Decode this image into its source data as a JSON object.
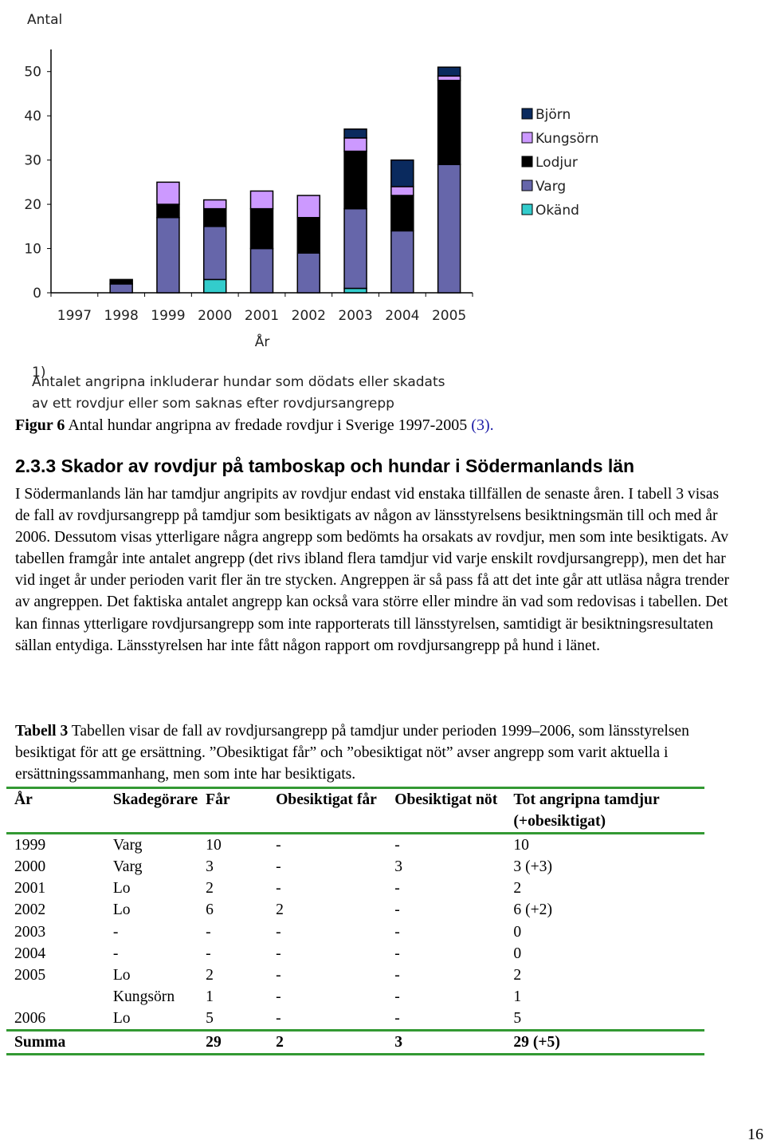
{
  "chart_data": {
    "type": "bar",
    "stacked": true,
    "y_label": "Antal",
    "x_label": "År",
    "categories": [
      "1997",
      "1998",
      "1999",
      "2000",
      "2001",
      "2002",
      "2003",
      "2004",
      "2005"
    ],
    "series": [
      {
        "name": "Okänd",
        "color": "#33cccc",
        "values": [
          0,
          0,
          0,
          3,
          0,
          0,
          1,
          0,
          0
        ]
      },
      {
        "name": "Varg",
        "color": "#6666aa",
        "values": [
          0,
          2,
          17,
          12,
          10,
          9,
          18,
          14,
          29
        ]
      },
      {
        "name": "Lodjur",
        "color": "#000000",
        "values": [
          0,
          1,
          3,
          4,
          9,
          8,
          13,
          8,
          19
        ]
      },
      {
        "name": "Kungsörn",
        "color": "#cc99ff",
        "values": [
          0,
          0,
          5,
          2,
          4,
          5,
          3,
          2,
          1
        ]
      },
      {
        "name": "Björn",
        "color": "#0a2a5e",
        "values": [
          0,
          0,
          0,
          0,
          0,
          0,
          2,
          6,
          2
        ]
      }
    ],
    "ylim": [
      0,
      55
    ],
    "yticks": [
      0,
      10,
      20,
      30,
      40,
      50
    ],
    "grid": false,
    "legend": "right",
    "footnote_marker": "1)",
    "footnote_lines": [
      "Antalet angripna inkluderar hundar som dödats eller skadats",
      "av ett rovdjur eller som saknas efter rovdjursangrepp"
    ]
  },
  "caption": {
    "label": "Figur 6",
    "text": "Antal hundar angripna av fredade rovdjur i Sverige 1997-2005",
    "ref": "(3)."
  },
  "section": {
    "heading": "2.3.3 Skador av rovdjur på tamboskap och hundar i Södermanlands län",
    "paragraph": "I Södermanlands län har tamdjur angripits av rovdjur endast vid enstaka tillfällen de senaste åren. I tabell 3 visas de fall av rovdjursangrepp på tamdjur som besiktigats av någon av länsstyrelsens besiktningsmän till och med år 2006. Dessutom visas ytterligare några angrepp som bedömts ha orsakats av rovdjur, men som inte besiktigats. Av tabellen framgår inte antalet angrepp (det rivs ibland flera tamdjur vid varje enskilt rovdjursangrepp), men det har vid inget år under perioden varit fler än tre stycken. Angreppen är så pass få att det inte går att utläsa några trender av angreppen. Det faktiska antalet angrepp kan också vara större eller mindre än vad som redovisas i tabellen. Det kan finnas ytterligare rovdjursangrepp som inte rapporterats till länsstyrelsen, samtidigt är besiktningsresultaten sällan entydiga. Länsstyrelsen har inte fått någon rapport om rovdjursangrepp på hund i länet."
  },
  "table": {
    "label": "Tabell 3",
    "caption": "Tabellen visar de fall av rovdjursangrepp på tamdjur under perioden 1999–2006, som länsstyrelsen besiktigat för att ge ersättning. ”Obesiktigat får” och ”obesiktigat nöt” avser angrepp som varit aktuella i ersättningssammanhang, men som inte har besiktigats.",
    "header": [
      "År",
      "Skadegörare",
      "Får",
      "Obesiktigat får",
      "Obesiktigat nöt",
      "Tot angripna tamdjur (+obesiktigat)"
    ],
    "rows": [
      [
        "1999",
        "Varg",
        "10",
        "-",
        "-",
        "10"
      ],
      [
        "2000",
        "Varg",
        "3",
        "-",
        "3",
        "3 (+3)"
      ],
      [
        "2001",
        "Lo",
        "2",
        "-",
        "-",
        "2"
      ],
      [
        "2002",
        "Lo",
        "6",
        "2",
        "-",
        "6 (+2)"
      ],
      [
        "2003",
        "-",
        "-",
        "-",
        "-",
        "0"
      ],
      [
        "2004",
        "-",
        "-",
        "-",
        "-",
        "0"
      ],
      [
        "2005",
        "Lo",
        "2",
        "-",
        "-",
        "2"
      ],
      [
        null,
        "Kungsörn",
        "1",
        "-",
        "-",
        "1"
      ],
      [
        "2006",
        "Lo",
        "5",
        "-",
        "-",
        "5"
      ]
    ],
    "total": [
      "Summa",
      null,
      "29",
      "2",
      "3",
      "29 (+5)"
    ]
  },
  "page_number": "16"
}
